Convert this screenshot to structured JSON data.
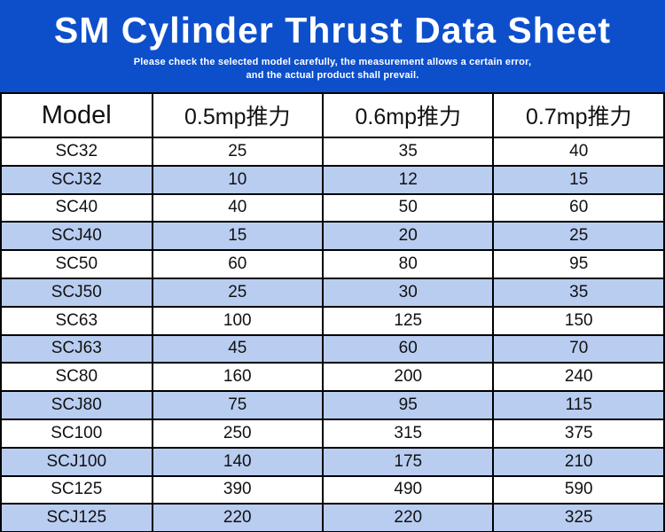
{
  "banner": {
    "title": "SM Cylinder Thrust Data Sheet",
    "subtitle_line1": "Please check the selected model carefully, the measurement allows a certain error,",
    "subtitle_line2": "and the actual product shall prevail.",
    "background_color": "#0d4fcb",
    "text_color": "#ffffff"
  },
  "table": {
    "columns": [
      "Model",
      "0.5mp推力",
      "0.6mp推力",
      "0.7mp推力"
    ],
    "alt_row_color": "#b9cdf1",
    "border_color": "#000000",
    "rows": [
      {
        "model": "SC32",
        "v05": "25",
        "v06": "35",
        "v07": "40"
      },
      {
        "model": "SCJ32",
        "v05": "10",
        "v06": "12",
        "v07": "15"
      },
      {
        "model": "SC40",
        "v05": "40",
        "v06": "50",
        "v07": "60"
      },
      {
        "model": "SCJ40",
        "v05": "15",
        "v06": "20",
        "v07": "25"
      },
      {
        "model": "SC50",
        "v05": "60",
        "v06": "80",
        "v07": "95"
      },
      {
        "model": "SCJ50",
        "v05": "25",
        "v06": "30",
        "v07": "35"
      },
      {
        "model": "SC63",
        "v05": "100",
        "v06": "125",
        "v07": "150"
      },
      {
        "model": "SCJ63",
        "v05": "45",
        "v06": "60",
        "v07": "70"
      },
      {
        "model": "SC80",
        "v05": "160",
        "v06": "200",
        "v07": "240"
      },
      {
        "model": "SCJ80",
        "v05": "75",
        "v06": "95",
        "v07": "115"
      },
      {
        "model": "SC100",
        "v05": "250",
        "v06": "315",
        "v07": "375"
      },
      {
        "model": "SCJ100",
        "v05": "140",
        "v06": "175",
        "v07": "210"
      },
      {
        "model": "SC125",
        "v05": "390",
        "v06": "490",
        "v07": "590"
      },
      {
        "model": "SCJ125",
        "v05": "220",
        "v06": "220",
        "v07": "325"
      }
    ]
  }
}
